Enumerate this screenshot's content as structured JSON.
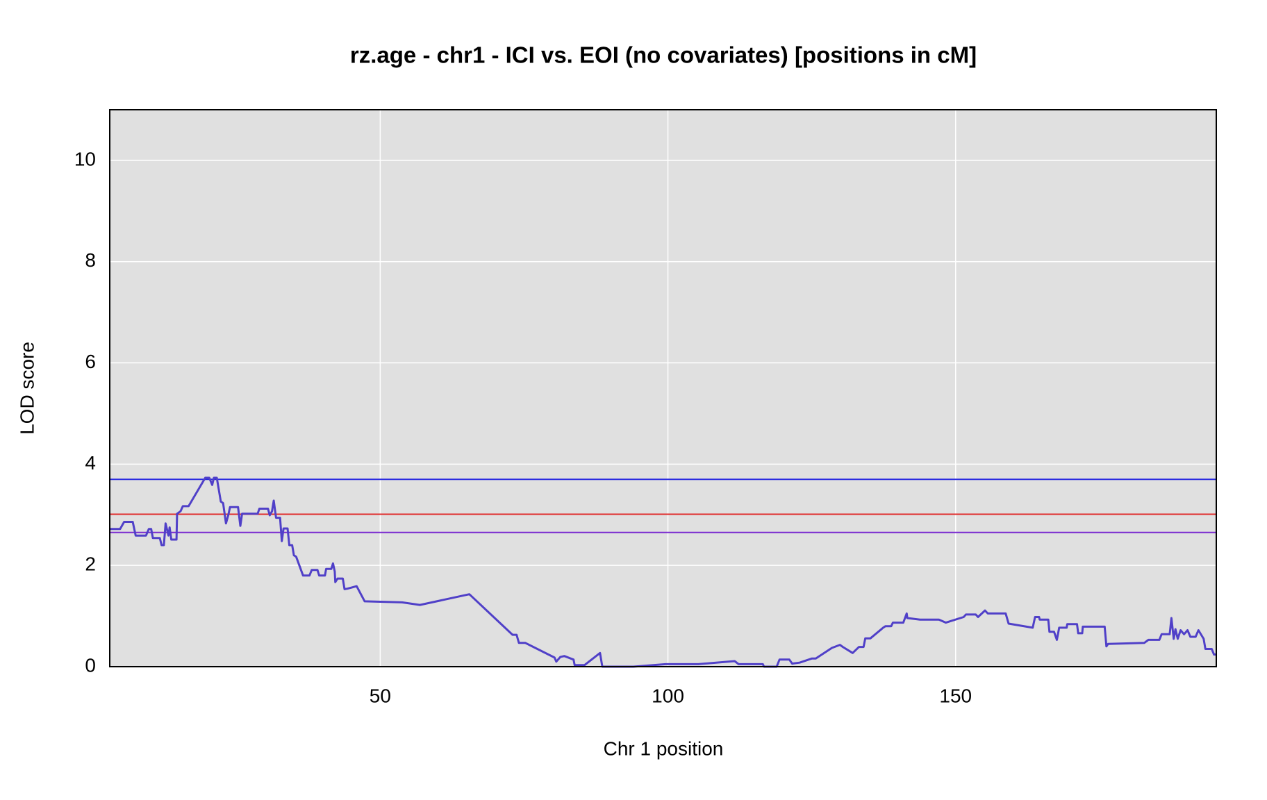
{
  "chart_data": {
    "type": "line",
    "title": "rz.age - chr1 - ICI vs. EOI (no covariates) [positions in cM]",
    "x_label": "Chr 1 position",
    "y_label": "LOD score",
    "xlim": [
      3,
      195.3
    ],
    "ylim": [
      0,
      11
    ],
    "xticks": [
      50,
      100,
      150
    ],
    "yticks": [
      0,
      2,
      4,
      6,
      8,
      10
    ],
    "grid": true,
    "hlines": [
      {
        "value": 3.7,
        "color": "#2b2be0"
      },
      {
        "value": 3.01,
        "color": "#e02b2b"
      },
      {
        "value": 2.65,
        "color": "#7a2bd0"
      }
    ],
    "series": [
      {
        "color": "#5040c8",
        "x": [
          3.0,
          4.8,
          5.5,
          7.0,
          7.5,
          9.3,
          9.8,
          10.2,
          10.5,
          11.7,
          12.0,
          12.4,
          12.7,
          13.2,
          13.4,
          13.7,
          14.6,
          14.7,
          15.3,
          15.7,
          16.7,
          19.6,
          20.3,
          20.8,
          21.1,
          21.6,
          22.3,
          22.7,
          23.2,
          23.6,
          23.9,
          25.3,
          25.7,
          26.0,
          28.7,
          29.0,
          30.5,
          30.8,
          31.2,
          31.5,
          31.9,
          32.6,
          32.9,
          33.2,
          33.9,
          34.2,
          34.7,
          35.0,
          35.4,
          36.6,
          37.7,
          38.1,
          39.1,
          39.4,
          40.4,
          40.6,
          41.5,
          41.8,
          42.1,
          42.2,
          42.6,
          43.5,
          43.8,
          44.3,
          45.9,
          47.3,
          53.8,
          56.9,
          65.5,
          73.0,
          73.7,
          74.1,
          75.2,
          80.3,
          80.6,
          81.3,
          82.0,
          83.6,
          83.8,
          85.5,
          88.2,
          88.6,
          94.0,
          99.6,
          105.3,
          111.6,
          112.3,
          116.5,
          116.7,
          118.9,
          119.4,
          121.1,
          121.6,
          122.9,
          125.0,
          125.7,
          128.5,
          129.9,
          130.4,
          132.1,
          133.2,
          134.0,
          134.3,
          135.2,
          137.4,
          137.8,
          138.8,
          139.1,
          140.9,
          141.5,
          141.6,
          143.8,
          147.1,
          148.3,
          151.4,
          151.8,
          153.5,
          153.9,
          155.1,
          155.6,
          158.7,
          159.2,
          163.4,
          163.8,
          164.5,
          164.6,
          166.1,
          166.3,
          167.1,
          167.6,
          168.0,
          169.3,
          169.4,
          171.1,
          171.3,
          172.0,
          172.1,
          175.9,
          176.2,
          176.5,
          182.8,
          183.5,
          185.4,
          185.8,
          187.2,
          187.5,
          187.9,
          188.2,
          188.6,
          189.1,
          189.7,
          190.3,
          190.8,
          191.7,
          192.2,
          193.1,
          193.4,
          194.5,
          194.9,
          195.2
        ],
        "values": [
          2.72,
          2.72,
          2.86,
          2.86,
          2.59,
          2.59,
          2.72,
          2.72,
          2.54,
          2.54,
          2.4,
          2.4,
          2.83,
          2.59,
          2.75,
          2.51,
          2.51,
          3.02,
          3.07,
          3.17,
          3.17,
          3.73,
          3.73,
          3.59,
          3.73,
          3.73,
          3.26,
          3.23,
          2.83,
          2.99,
          3.15,
          3.15,
          2.78,
          3.02,
          3.02,
          3.12,
          3.12,
          2.99,
          3.07,
          3.28,
          2.94,
          2.94,
          2.48,
          2.73,
          2.73,
          2.4,
          2.4,
          2.2,
          2.17,
          1.8,
          1.8,
          1.91,
          1.91,
          1.8,
          1.8,
          1.93,
          1.93,
          2.04,
          1.88,
          1.67,
          1.74,
          1.74,
          1.53,
          1.54,
          1.59,
          1.29,
          1.27,
          1.22,
          1.43,
          0.63,
          0.63,
          0.47,
          0.47,
          0.18,
          0.1,
          0.19,
          0.21,
          0.14,
          0.03,
          0.03,
          0.27,
          0,
          0,
          0.05,
          0.05,
          0.11,
          0.05,
          0.05,
          0,
          0,
          0.14,
          0.14,
          0.06,
          0.08,
          0.16,
          0.16,
          0.37,
          0.43,
          0.39,
          0.27,
          0.39,
          0.39,
          0.56,
          0.56,
          0.77,
          0.8,
          0.8,
          0.87,
          0.87,
          1.05,
          0.96,
          0.93,
          0.93,
          0.87,
          0.98,
          1.03,
          1.03,
          0.98,
          1.11,
          1.05,
          1.05,
          0.85,
          0.77,
          0.98,
          0.98,
          0.93,
          0.93,
          0.69,
          0.69,
          0.53,
          0.77,
          0.77,
          0.84,
          0.84,
          0.66,
          0.66,
          0.79,
          0.79,
          0.4,
          0.45,
          0.47,
          0.53,
          0.53,
          0.64,
          0.64,
          0.96,
          0.55,
          0.74,
          0.55,
          0.72,
          0.64,
          0.72,
          0.59,
          0.59,
          0.72,
          0.55,
          0.35,
          0.35,
          0.24,
          0.24
        ]
      }
    ]
  }
}
